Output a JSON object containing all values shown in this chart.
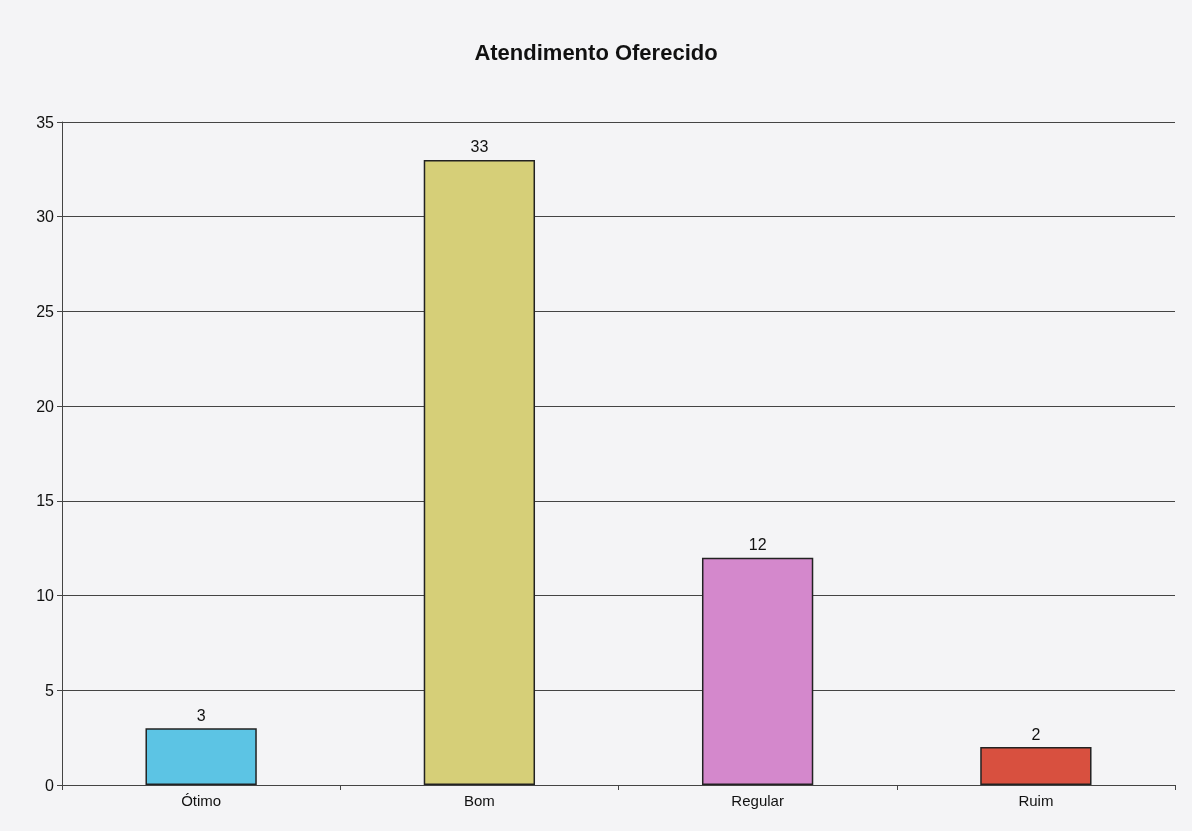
{
  "chart_data": {
    "type": "bar",
    "title": "Atendimento Oferecido",
    "categories": [
      "Ótimo",
      "Bom",
      "Regular",
      "Ruim"
    ],
    "values": [
      3,
      33,
      12,
      2
    ],
    "colors": [
      "#5cc4e4",
      "#d6cf78",
      "#d488cc",
      "#d8503f"
    ],
    "ylim": [
      0,
      35
    ],
    "yticks": [
      0,
      5,
      10,
      15,
      20,
      25,
      30,
      35
    ],
    "grid": "y",
    "data_labels": true
  }
}
